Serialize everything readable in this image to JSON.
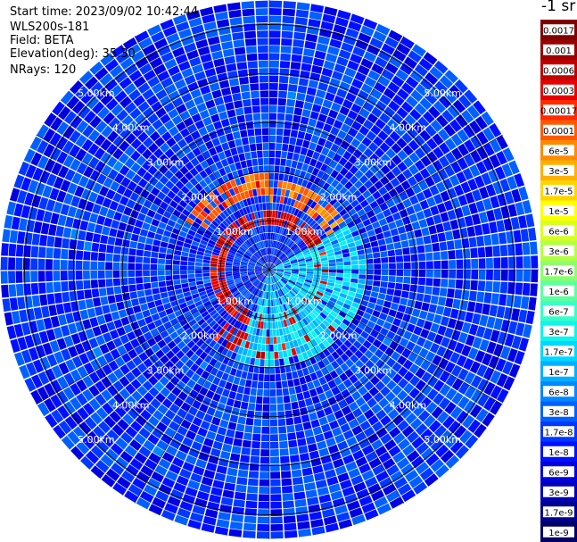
{
  "header": {
    "start_time": "Start time: 2023/09/02 10:42:44",
    "instrument": "WLS200s-181",
    "field": "Field: BETA",
    "elevation": "Elevation(deg): 35.30",
    "nrays": "NRays: 120"
  },
  "colorbar": {
    "title": "-1 sr",
    "ticks": [
      "0.0017",
      "0.001",
      "0.0006",
      "0.0003",
      "0.00017",
      "0.0001",
      "6e-5",
      "3e-5",
      "1.7e-5",
      "1e-5",
      "6e-6",
      "3e-6",
      "1.7e-6",
      "1e-6",
      "6e-7",
      "3e-7",
      "1.7e-7",
      "1e-7",
      "6e-8",
      "3e-8",
      "1.7e-8",
      "1e-8",
      "6e-9",
      "3e-9",
      "1.7e-9",
      "1e-9"
    ],
    "colors": [
      "#800000",
      "#9a0000",
      "#c00000",
      "#e60000",
      "#ff2a00",
      "#ff5a00",
      "#ff8a00",
      "#ffb000",
      "#ffd500",
      "#ffff00",
      "#d8ff20",
      "#b4ff44",
      "#8cff6c",
      "#5effa0",
      "#38ffc8",
      "#10f4ec",
      "#00d8ff",
      "#00b0ff",
      "#0088ff",
      "#0060ff",
      "#0038ff",
      "#0010ff",
      "#0000e0",
      "#0000b8",
      "#000090",
      "#000068"
    ]
  },
  "chart_data": {
    "type": "heatmap",
    "projection": "polar PPI",
    "field": "BETA",
    "nrays": 120,
    "elevation_deg": 35.3,
    "range_unit": "km",
    "range_rings_km": [
      1.0,
      2.0,
      3.0,
      4.0,
      5.0
    ],
    "range_labels": [
      "1.00km",
      "2.00km",
      "3.00km",
      "4.00km",
      "5.00km"
    ],
    "max_range_km": 5.5,
    "colorscale": "log10 jet",
    "clim": [
      1e-09,
      0.0017
    ],
    "background_level": 1.7e-08,
    "features": [
      {
        "desc": "aerosol ring",
        "range_km": [
          0.9,
          1.25
        ],
        "az_deg": [
          0,
          360
        ],
        "level": 0.0003
      },
      {
        "desc": "layer north-west",
        "range_km": [
          1.5,
          2.0
        ],
        "az_deg": [
          300,
          360
        ],
        "level": 0.0001
      },
      {
        "desc": "layer north",
        "range_km": [
          1.3,
          1.8
        ],
        "az_deg": [
          0,
          60
        ],
        "level": 6e-05
      },
      {
        "desc": "layer south",
        "range_km": [
          1.3,
          1.9
        ],
        "az_deg": [
          130,
          220
        ],
        "level": 0.0003
      },
      {
        "desc": "sector south-east",
        "range_km": [
          0,
          2.0
        ],
        "az_deg": [
          60,
          200
        ],
        "level": 1.7e-07
      }
    ]
  }
}
